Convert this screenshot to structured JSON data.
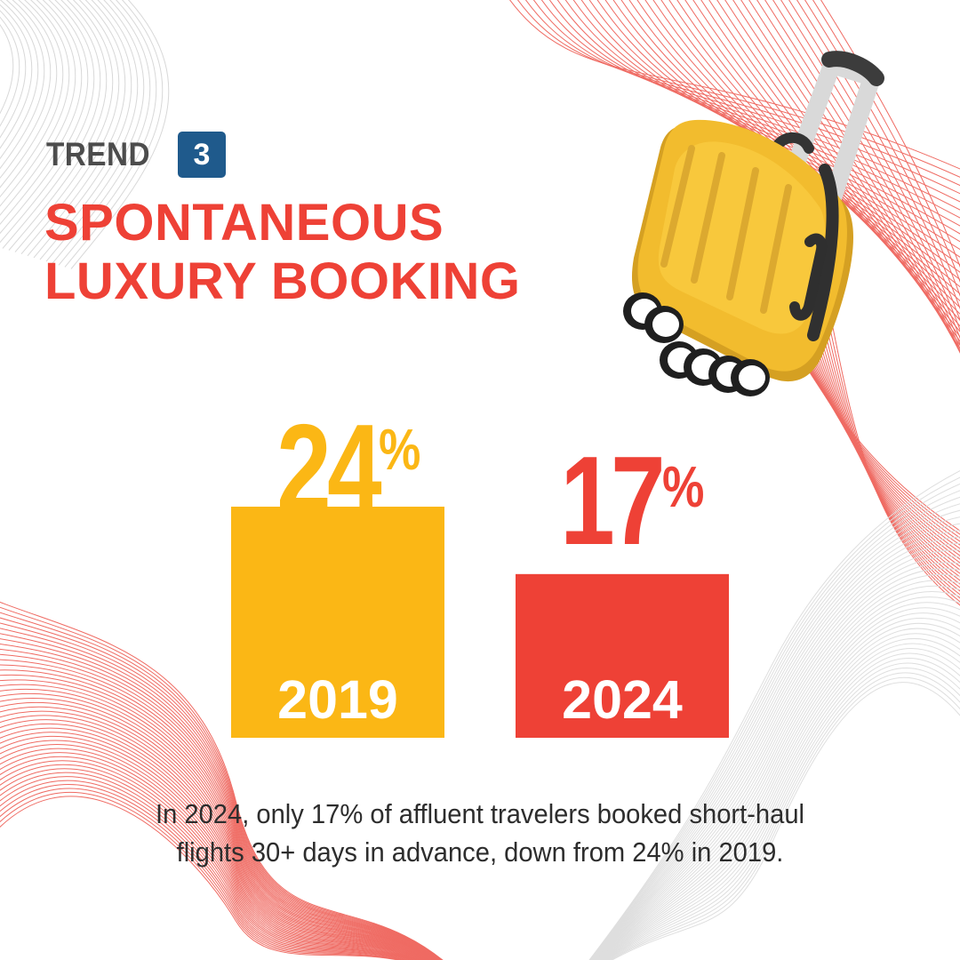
{
  "header": {
    "trend_label": "TREND",
    "trend_number": "3",
    "title_lines": [
      "SPONTANEOUS",
      "LUXURY BOOKING"
    ]
  },
  "icons": {
    "illustration": "suitcase-icon"
  },
  "colors": {
    "accent_red": "#EE4136",
    "accent_yellow": "#FBB715",
    "badge_blue": "#1F5A8C"
  },
  "chart_data": {
    "type": "bar",
    "categories": [
      "2019",
      "2024"
    ],
    "values": [
      24,
      17
    ],
    "value_labels": [
      "24",
      "17"
    ],
    "unit": "%",
    "colors": [
      "#FBB715",
      "#EE4136"
    ],
    "title": "",
    "xlabel": "",
    "ylabel": "",
    "ylim": [
      0,
      30
    ]
  },
  "footnote": {
    "line1": "In 2024, only 17% of affluent travelers booked short-haul",
    "line2": "flights 30+ days in advance, down from 24% in 2019."
  }
}
